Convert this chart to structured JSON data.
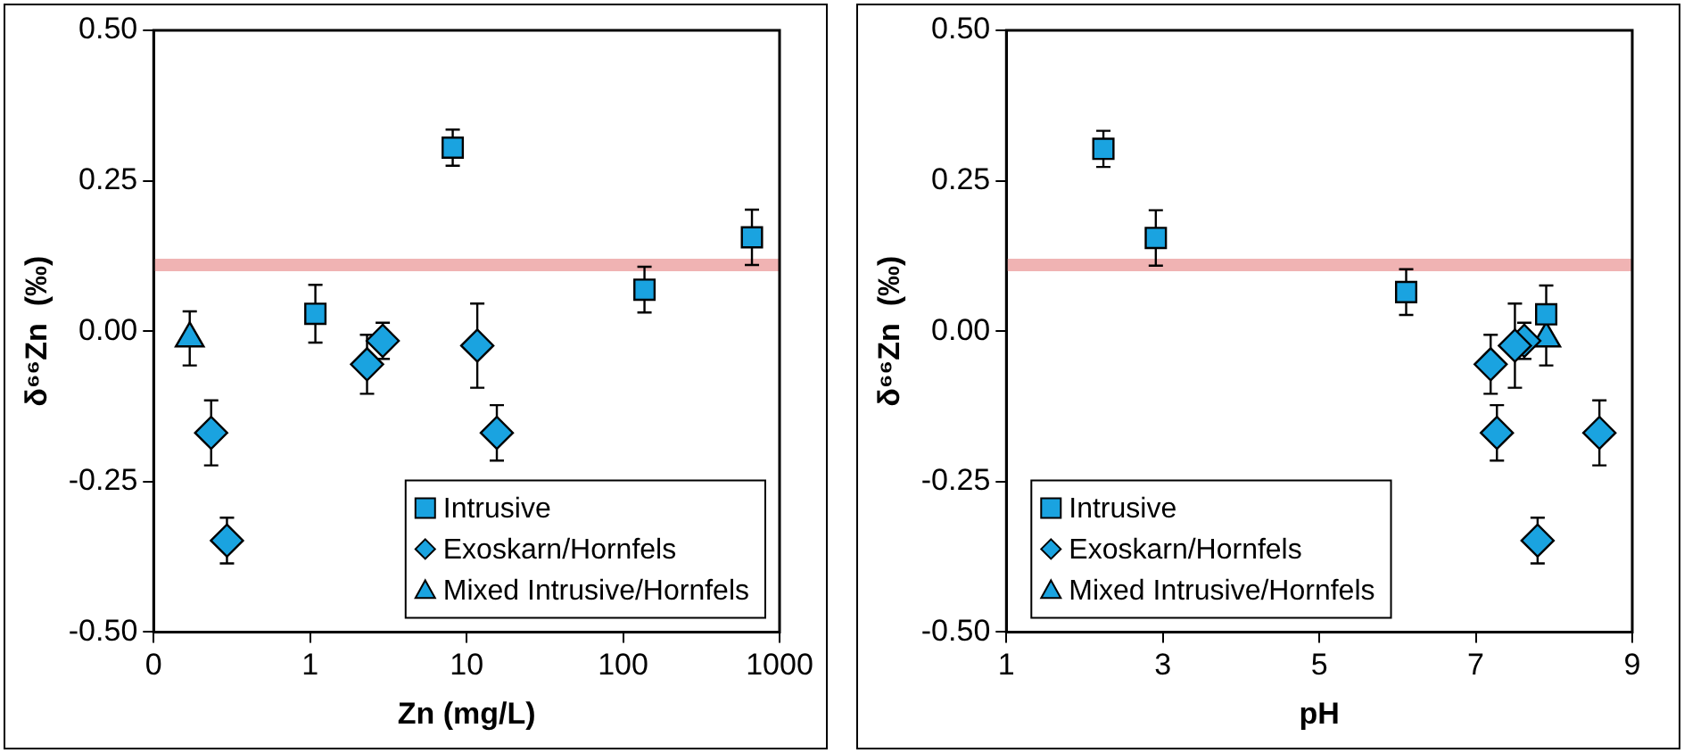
{
  "chart_data": [
    {
      "type": "scatter",
      "xlabel": "Zn (mg/L)",
      "ylabel": "δ⁶⁶Zn  (‰)",
      "log": "x",
      "xlim": [
        0.1,
        1000
      ],
      "xticks": [
        {
          "value": 0.1,
          "label": "0"
        },
        1,
        10,
        100,
        1000
      ],
      "ylim": [
        -0.5,
        0.5
      ],
      "yticks": [
        {
          "value": -0.5,
          "label": "-0.50"
        },
        {
          "value": -0.25,
          "label": "-0.25"
        },
        {
          "value": 0,
          "label": "0.00"
        },
        {
          "value": 0.25,
          "label": "0.25"
        },
        {
          "value": 0.5,
          "label": "0.50"
        }
      ],
      "grid": false,
      "legend": "bottom right",
      "ref_lines": [
        {
          "axis": "y",
          "value": 0.11,
          "color": "#f0b3b3"
        }
      ],
      "series": [
        {
          "name": "Intrusive",
          "color": "#1aa3e0",
          "marker": "square",
          "x": [
            1.08,
            8.15,
            137,
            666
          ],
          "values": [
            0.029,
            0.305,
            0.069,
            0.156
          ],
          "errors": [
            0.048,
            0.03,
            0.038,
            0.046
          ]
        },
        {
          "name": "Exoskarn/Hornfels",
          "color": "#1aa3e0",
          "marker": "diamond",
          "x": [
            0.233,
            0.294,
            2.31,
            2.91,
            11.7,
            15.6
          ],
          "values": [
            -0.169,
            -0.348,
            -0.055,
            -0.016,
            -0.024,
            -0.169
          ],
          "errors": [
            0.054,
            0.038,
            0.049,
            0.03,
            0.07,
            0.046
          ]
        },
        {
          "name": "Mixed Intrusive/Hornfels",
          "color": "#1aa3e0",
          "marker": "triangle",
          "x": [
            0.17
          ],
          "values": [
            -0.012
          ],
          "errors": [
            0.045
          ]
        }
      ]
    },
    {
      "type": "scatter",
      "xlabel": "pH",
      "ylabel": "δ⁶⁶Zn  (‰)",
      "xlim": [
        1,
        9
      ],
      "xticks": [
        1,
        3,
        5,
        7,
        9
      ],
      "ylim": [
        -0.5,
        0.5
      ],
      "yticks": [
        {
          "value": -0.5,
          "label": "-0.50"
        },
        {
          "value": -0.25,
          "label": "-0.25"
        },
        {
          "value": 0,
          "label": "0.00"
        },
        {
          "value": 0.25,
          "label": "0.25"
        },
        {
          "value": 0.5,
          "label": "0.50"
        }
      ],
      "grid": false,
      "legend": "bottom left",
      "ref_lines": [
        {
          "axis": "y",
          "value": 0.11,
          "color": "#f0b3b3"
        }
      ],
      "series": [
        {
          "name": "Intrusive",
          "color": "#1aa3e0",
          "marker": "square",
          "x": [
            2.24,
            2.91,
            6.11,
            7.9
          ],
          "values": [
            0.303,
            0.155,
            0.065,
            0.028
          ],
          "errors": [
            0.03,
            0.046,
            0.038,
            0.048
          ]
        },
        {
          "name": "Exoskarn/Hornfels",
          "color": "#1aa3e0",
          "marker": "diamond",
          "x": [
            7.27,
            7.79,
            7.19,
            7.62,
            7.5,
            8.58
          ],
          "values": [
            -0.169,
            -0.348,
            -0.055,
            -0.016,
            -0.024,
            -0.169
          ],
          "errors": [
            0.046,
            0.038,
            0.049,
            0.03,
            0.07,
            0.054
          ]
        },
        {
          "name": "Mixed Intrusive/Hornfels",
          "color": "#1aa3e0",
          "marker": "triangle",
          "x": [
            7.9
          ],
          "values": [
            -0.012
          ],
          "errors": [
            0.045
          ]
        }
      ]
    }
  ]
}
